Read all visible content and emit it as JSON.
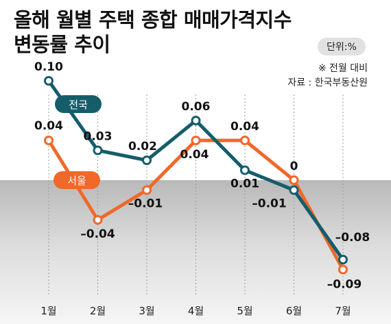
{
  "title": {
    "line1": "올해 월별 주택 종합 매매가격지수",
    "line2": "변동률 추이"
  },
  "unit": "단위:%",
  "note": "※ 전월 대비",
  "source": "자료 : 한국부동산원",
  "chart_data": {
    "type": "line",
    "categories": [
      "1월",
      "2월",
      "3월",
      "4월",
      "5월",
      "6월",
      "7월"
    ],
    "ylim": [
      -0.1,
      0.12
    ],
    "grid": true,
    "series": [
      {
        "name": "전국",
        "color": "#155d6b",
        "values": [
          0.1,
          0.03,
          0.02,
          0.06,
          0.01,
          -0.01,
          -0.08
        ],
        "labels": [
          "0.10",
          "0.03",
          "0.02",
          "0.06",
          "0.01",
          "–0.01",
          "–0.08"
        ]
      },
      {
        "name": "서울",
        "color": "#f0682a",
        "values": [
          0.04,
          -0.04,
          -0.01,
          0.04,
          0.04,
          0,
          -0.09
        ],
        "labels": [
          "0.04",
          "–0.04",
          "–0.01",
          "0.04",
          "0.04",
          "0",
          "–0.09"
        ]
      }
    ]
  }
}
